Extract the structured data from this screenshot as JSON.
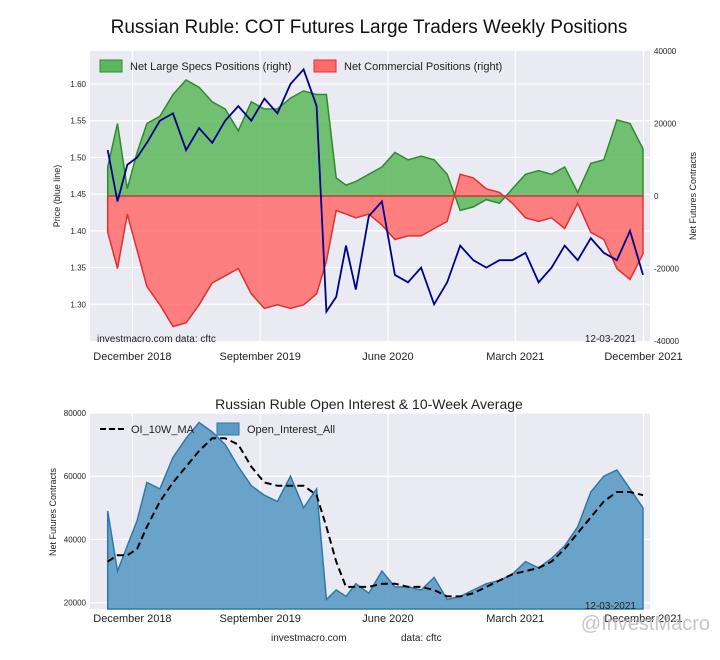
{
  "chart_data": [
    {
      "type": "area",
      "title": "Russian Ruble: COT Futures Large Traders Weekly Positions",
      "ylabel_left": "Price (blue line)",
      "ylabel_right": "Net Futures Contracts",
      "x_tick_labels": [
        "December 2018",
        "September 2019",
        "June 2020",
        "March 2021",
        "December 2021"
      ],
      "x_tick_dates": [
        "2018-12-01",
        "2019-09-01",
        "2020-06-01",
        "2021-03-01",
        "2021-12-01"
      ],
      "x_range": [
        "2018-09-01",
        "2021-12-15"
      ],
      "ylim_left": [
        1.25,
        1.645
      ],
      "ylim_right": [
        -40000,
        40000
      ],
      "y_left_ticks": [
        1.3,
        1.35,
        1.4,
        1.45,
        1.5,
        1.55,
        1.6
      ],
      "y_left_tick_labels": [
        "1.30",
        "1.35",
        "1.40",
        "1.45",
        "1.50",
        "1.55",
        "1.60"
      ],
      "y_right_ticks": [
        40000,
        20000,
        0,
        -20000,
        -40000
      ],
      "y_right_tick_labels": [
        "40000",
        "20000",
        "0",
        "-20000",
        "-40000"
      ],
      "grid": true,
      "legend": "top-left",
      "annotations": {
        "left": "investmacro.com    data: cftc",
        "right": "12-03-2021"
      },
      "series": [
        {
          "name": "Net Large Specs Positions (right)",
          "color": "#2e8b2e",
          "fill": "#5cb85c",
          "x": [
            "2018-10-09",
            "2018-10-30",
            "2018-11-20",
            "2018-12-11",
            "2019-01-01",
            "2019-01-29",
            "2019-02-26",
            "2019-03-26",
            "2019-04-23",
            "2019-05-21",
            "2019-06-18",
            "2019-07-16",
            "2019-08-13",
            "2019-09-10",
            "2019-10-08",
            "2019-11-05",
            "2019-12-03",
            "2019-12-31",
            "2020-01-21",
            "2020-02-11",
            "2020-03-03",
            "2020-03-24",
            "2020-04-21",
            "2020-05-19",
            "2020-06-16",
            "2020-07-14",
            "2020-08-11",
            "2020-09-08",
            "2020-10-06",
            "2020-11-03",
            "2020-12-01",
            "2020-12-29",
            "2021-01-26",
            "2021-02-23",
            "2021-03-23",
            "2021-04-20",
            "2021-05-18",
            "2021-06-15",
            "2021-07-13",
            "2021-08-10",
            "2021-09-07",
            "2021-10-05",
            "2021-11-02",
            "2021-11-30"
          ],
          "values": [
            8000,
            20000,
            2000,
            12000,
            20000,
            22000,
            28000,
            32000,
            30000,
            26000,
            24000,
            18000,
            26000,
            24000,
            24000,
            27000,
            29000,
            28000,
            28000,
            5000,
            3000,
            4000,
            6000,
            8000,
            12000,
            10000,
            11000,
            10000,
            6000,
            -4000,
            -3000,
            -1000,
            -2000,
            2000,
            6000,
            7000,
            6000,
            8000,
            1000,
            9000,
            10000,
            21000,
            20000,
            13000
          ]
        },
        {
          "name": "Net Commercial Positions (right)",
          "color": "#e03030",
          "fill": "#ff6b6b",
          "x": [
            "2018-10-09",
            "2018-10-30",
            "2018-11-20",
            "2018-12-11",
            "2019-01-01",
            "2019-01-29",
            "2019-02-26",
            "2019-03-26",
            "2019-04-23",
            "2019-05-21",
            "2019-06-18",
            "2019-07-16",
            "2019-08-13",
            "2019-09-10",
            "2019-10-08",
            "2019-11-05",
            "2019-12-03",
            "2019-12-31",
            "2020-01-21",
            "2020-02-11",
            "2020-03-03",
            "2020-03-24",
            "2020-04-21",
            "2020-05-19",
            "2020-06-16",
            "2020-07-14",
            "2020-08-11",
            "2020-09-08",
            "2020-10-06",
            "2020-11-03",
            "2020-12-01",
            "2020-12-29",
            "2021-01-26",
            "2021-02-23",
            "2021-03-23",
            "2021-04-20",
            "2021-05-18",
            "2021-06-15",
            "2021-07-13",
            "2021-08-10",
            "2021-09-07",
            "2021-10-05",
            "2021-11-02",
            "2021-11-30"
          ],
          "values": [
            -10000,
            -20000,
            -5000,
            -15000,
            -25000,
            -30000,
            -36000,
            -35000,
            -30000,
            -24000,
            -22000,
            -20000,
            -27000,
            -31000,
            -30000,
            -31000,
            -30000,
            -27000,
            -18000,
            -4000,
            -5000,
            -6000,
            -5000,
            -8000,
            -12000,
            -11000,
            -11000,
            -9000,
            -7000,
            6000,
            5000,
            2000,
            1000,
            -2000,
            -6000,
            -7000,
            -6000,
            -9000,
            -2000,
            -10000,
            -12000,
            -20000,
            -23000,
            -16000
          ]
        },
        {
          "name": "Price",
          "color": "#00008b",
          "axis": "left",
          "x": [
            "2018-10-09",
            "2018-10-30",
            "2018-11-20",
            "2018-12-11",
            "2019-01-01",
            "2019-01-29",
            "2019-02-26",
            "2019-03-26",
            "2019-04-23",
            "2019-05-21",
            "2019-06-18",
            "2019-07-16",
            "2019-08-13",
            "2019-09-10",
            "2019-10-08",
            "2019-11-05",
            "2019-12-03",
            "2019-12-31",
            "2020-01-21",
            "2020-02-11",
            "2020-03-03",
            "2020-03-24",
            "2020-04-21",
            "2020-05-19",
            "2020-06-16",
            "2020-07-14",
            "2020-08-11",
            "2020-09-08",
            "2020-10-06",
            "2020-11-03",
            "2020-12-01",
            "2020-12-29",
            "2021-01-26",
            "2021-02-23",
            "2021-03-23",
            "2021-04-20",
            "2021-05-18",
            "2021-06-15",
            "2021-07-13",
            "2021-08-10",
            "2021-09-07",
            "2021-10-05",
            "2021-11-02",
            "2021-11-30"
          ],
          "values": [
            1.51,
            1.44,
            1.49,
            1.5,
            1.52,
            1.55,
            1.56,
            1.51,
            1.54,
            1.52,
            1.55,
            1.57,
            1.55,
            1.58,
            1.56,
            1.6,
            1.62,
            1.57,
            1.29,
            1.31,
            1.38,
            1.32,
            1.42,
            1.44,
            1.34,
            1.33,
            1.35,
            1.3,
            1.33,
            1.38,
            1.36,
            1.35,
            1.36,
            1.36,
            1.37,
            1.33,
            1.35,
            1.38,
            1.36,
            1.39,
            1.37,
            1.36,
            1.4,
            1.34
          ]
        }
      ]
    },
    {
      "type": "area",
      "title": "Russian Ruble Open Interest & 10-Week Average",
      "ylabel": "Net Futures Contracts",
      "x_tick_labels": [
        "December 2018",
        "September 2019",
        "June 2020",
        "March 2021",
        "December 2021"
      ],
      "x_tick_dates": [
        "2018-12-01",
        "2019-09-01",
        "2020-06-01",
        "2021-03-01",
        "2021-12-01"
      ],
      "x_range": [
        "2018-09-01",
        "2021-12-15"
      ],
      "ylim": [
        18000,
        80000
      ],
      "y_ticks": [
        20000,
        40000,
        60000,
        80000
      ],
      "y_tick_labels": [
        "20000",
        "40000",
        "60000",
        "80000"
      ],
      "grid": true,
      "legend": "top-left",
      "annotations": {
        "date": "12-03-2021",
        "footer_left": "investmacro.com",
        "footer_right": "data: cftc",
        "watermark": "@InvestMacro"
      },
      "series": [
        {
          "name": "Open_Interest_All",
          "color": "#2f78a8",
          "fill": "#5b9bc4",
          "x": [
            "2018-10-09",
            "2018-10-30",
            "2018-11-20",
            "2018-12-11",
            "2019-01-01",
            "2019-01-29",
            "2019-02-26",
            "2019-03-26",
            "2019-04-23",
            "2019-05-21",
            "2019-06-18",
            "2019-07-16",
            "2019-08-13",
            "2019-09-10",
            "2019-10-08",
            "2019-11-05",
            "2019-12-03",
            "2019-12-31",
            "2020-01-21",
            "2020-02-11",
            "2020-03-03",
            "2020-03-24",
            "2020-04-21",
            "2020-05-19",
            "2020-06-16",
            "2020-07-14",
            "2020-08-11",
            "2020-09-08",
            "2020-10-06",
            "2020-11-03",
            "2020-12-01",
            "2020-12-29",
            "2021-01-26",
            "2021-02-23",
            "2021-03-23",
            "2021-04-20",
            "2021-05-18",
            "2021-06-15",
            "2021-07-13",
            "2021-08-10",
            "2021-09-07",
            "2021-10-05",
            "2021-11-02",
            "2021-11-30"
          ],
          "values": [
            49000,
            30000,
            38000,
            46000,
            58000,
            56000,
            66000,
            72000,
            77000,
            74000,
            70000,
            63000,
            57000,
            54000,
            52000,
            60000,
            50000,
            56000,
            21000,
            24000,
            22000,
            26000,
            23000,
            30000,
            25000,
            25000,
            24000,
            28000,
            21000,
            22000,
            24000,
            26000,
            27000,
            29000,
            33000,
            31000,
            34000,
            38000,
            44000,
            55000,
            60000,
            62000,
            56000,
            50000
          ]
        },
        {
          "name": "OI_10W_MA",
          "color": "#000000",
          "x": [
            "2018-10-09",
            "2018-10-30",
            "2018-11-20",
            "2018-12-11",
            "2019-01-01",
            "2019-01-29",
            "2019-02-26",
            "2019-03-26",
            "2019-04-23",
            "2019-05-21",
            "2019-06-18",
            "2019-07-16",
            "2019-08-13",
            "2019-09-10",
            "2019-10-08",
            "2019-11-05",
            "2019-12-03",
            "2019-12-31",
            "2020-01-21",
            "2020-02-11",
            "2020-03-03",
            "2020-03-24",
            "2020-04-21",
            "2020-05-19",
            "2020-06-16",
            "2020-07-14",
            "2020-08-11",
            "2020-09-08",
            "2020-10-06",
            "2020-11-03",
            "2020-12-01",
            "2020-12-29",
            "2021-01-26",
            "2021-02-23",
            "2021-03-23",
            "2021-04-20",
            "2021-05-18",
            "2021-06-15",
            "2021-07-13",
            "2021-08-10",
            "2021-09-07",
            "2021-10-05",
            "2021-11-02",
            "2021-11-30"
          ],
          "values": [
            33000,
            35000,
            35000,
            37000,
            44000,
            52000,
            58000,
            63000,
            68000,
            72000,
            72000,
            70000,
            63000,
            58000,
            57000,
            57000,
            57000,
            54000,
            44000,
            33000,
            25000,
            25000,
            25000,
            26000,
            26000,
            25000,
            25000,
            24000,
            22000,
            22000,
            23000,
            25000,
            27000,
            29000,
            30000,
            31000,
            33000,
            37000,
            42000,
            47000,
            52000,
            55000,
            55000,
            54000
          ]
        }
      ]
    }
  ]
}
